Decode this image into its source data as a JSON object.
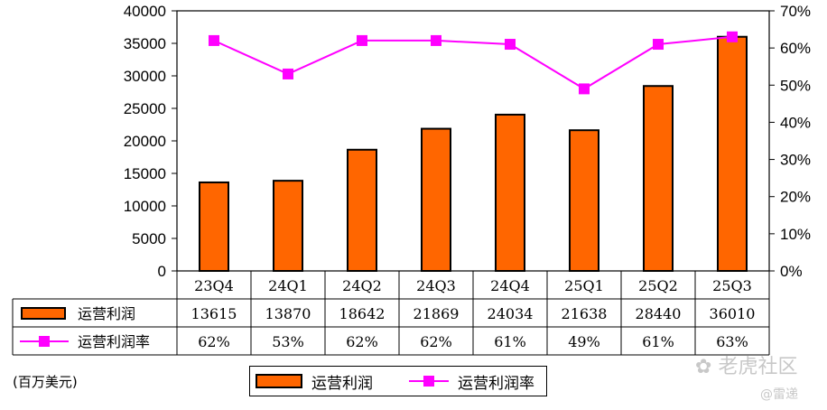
{
  "chart_data": {
    "type": "bar",
    "categories": [
      "23Q4",
      "24Q1",
      "24Q2",
      "24Q3",
      "24Q4",
      "25Q1",
      "25Q2",
      "25Q3"
    ],
    "series": [
      {
        "name": "运营利润",
        "type": "bar",
        "axis": "left",
        "color": "#ff6600",
        "values": [
          13615,
          13870,
          18642,
          21869,
          24034,
          21638,
          28440,
          36010
        ]
      },
      {
        "name": "运营利润率",
        "type": "line",
        "axis": "right",
        "color": "#ff00ff",
        "values": [
          0.62,
          0.53,
          0.62,
          0.62,
          0.61,
          0.49,
          0.61,
          0.63
        ]
      }
    ],
    "ylim_left": [
      0,
      40000
    ],
    "yticks_left": [
      "0",
      "5000",
      "10000",
      "15000",
      "20000",
      "25000",
      "30000",
      "35000",
      "40000"
    ],
    "ylim_right": [
      0,
      0.7
    ],
    "yticks_right": [
      "0%",
      "10%",
      "20%",
      "30%",
      "40%",
      "50%",
      "60%",
      "70%"
    ],
    "data_table": {
      "rows": [
        {
          "label": "运营利润",
          "values": [
            "13615",
            "13870",
            "18642",
            "21869",
            "24034",
            "21638",
            "28440",
            "36010"
          ]
        },
        {
          "label": "运营利润率",
          "values": [
            "62%",
            "53%",
            "62%",
            "62%",
            "61%",
            "49%",
            "61%",
            "63%"
          ]
        }
      ]
    },
    "unit_note": "(百万美元)",
    "legend": [
      "运营利润",
      "运营利润率"
    ],
    "legend_position": "bottom",
    "grid": false
  },
  "watermark": {
    "line1": "老虎社区",
    "line2": "@雷递"
  }
}
